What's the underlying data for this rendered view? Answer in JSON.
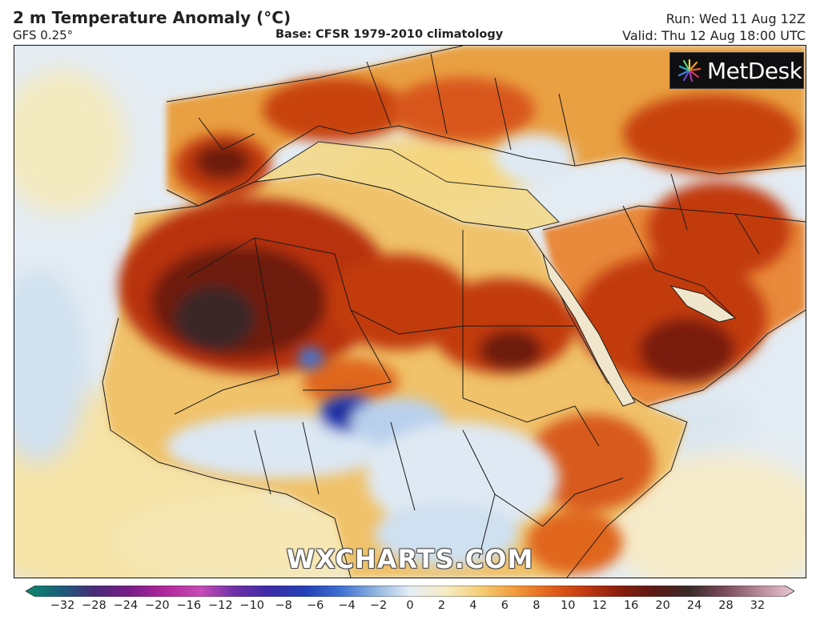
{
  "header": {
    "title": "2 m Temperature Anomaly (°C)",
    "model": "GFS 0.25°",
    "base": "Base: CFSR 1979-2010 climatology",
    "run": "Run: Wed 11 Aug 12Z",
    "valid": "Valid: Thu 12 Aug 18:00 UTC"
  },
  "logo": {
    "text": "MetDesk",
    "icon": "metdesk-burst-icon"
  },
  "watermark": "WXCHARTS.COM",
  "colorbar": {
    "ticks": [
      "−32",
      "−28",
      "−24",
      "−20",
      "−16",
      "−12",
      "−10",
      "−8",
      "−6",
      "−4",
      "−2",
      "0",
      "2",
      "4",
      "6",
      "8",
      "10",
      "12",
      "16",
      "20",
      "24",
      "28",
      "32"
    ],
    "colors": [
      "#0b8a6a",
      "#1a5e7a",
      "#4a2a78",
      "#7a1c8a",
      "#b2279c",
      "#c84bb8",
      "#6c2fa8",
      "#3b2ca8",
      "#2340b8",
      "#3d6fd0",
      "#8fb4e0",
      "#e6eef5",
      "#f6ecc4",
      "#f4cf78",
      "#f29a3a",
      "#e3611c",
      "#c23a10",
      "#8a1e0c",
      "#5a1a14",
      "#3a2a2a",
      "#7a4a5a",
      "#b88a9a",
      "#e8c9d2"
    ]
  },
  "map": {
    "colors": {
      "ocean_cool": "#dfe9f2",
      "ocean_cold": "#b7d0ea",
      "neutral": "#f1eedf",
      "warm_light": "#f6dc8c",
      "warm": "#f2b04b",
      "hot": "#e0661b",
      "very_hot": "#b8300f",
      "extreme": "#6e1a10",
      "extreme_core": "#3a2626",
      "cold_anomaly": "#2a45c0",
      "border": "#1a1a1a"
    }
  }
}
